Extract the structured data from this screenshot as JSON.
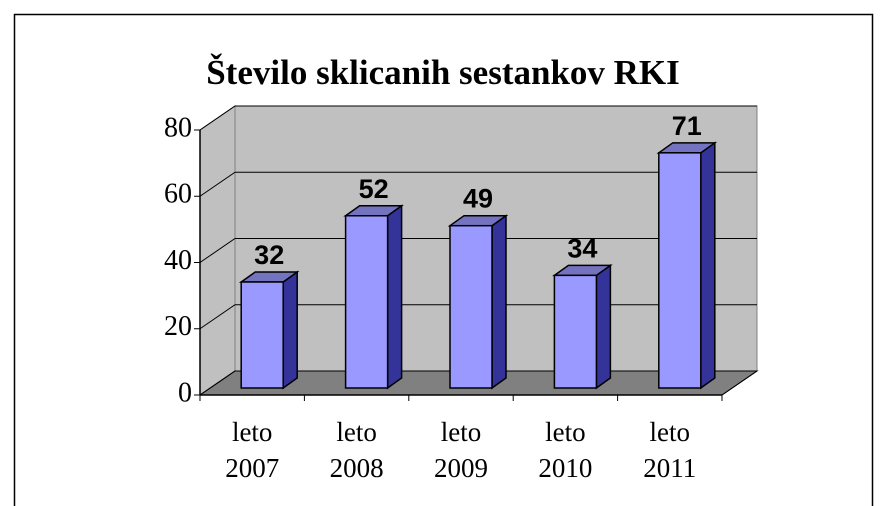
{
  "chart_data": {
    "type": "bar",
    "title": "Število sklicanih sestankov RKI",
    "categories": [
      "leto 2007",
      "leto 2008",
      "leto 2009",
      "leto 2010",
      "leto 2011"
    ],
    "values": [
      32,
      52,
      49,
      34,
      71
    ],
    "color": "#9999ff",
    "ylim": [
      0,
      80
    ],
    "yticks": [
      0,
      20,
      40,
      60,
      80
    ],
    "grid": true
  }
}
